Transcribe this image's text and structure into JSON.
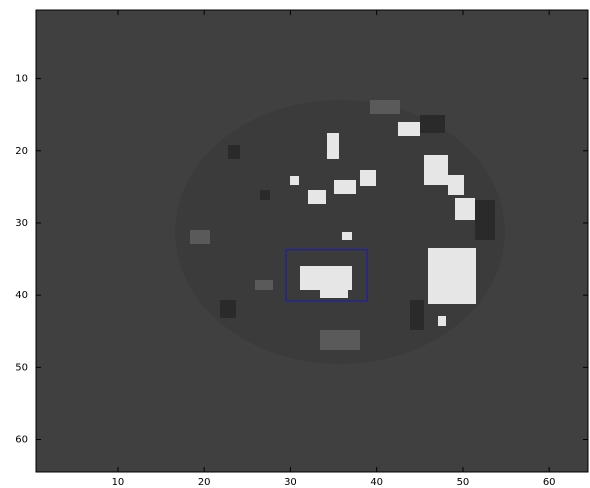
{
  "chart_data": {
    "type": "image",
    "xlim": [
      0.5,
      64.5
    ],
    "ylim": [
      0.5,
      64.5
    ],
    "y_reversed": true,
    "xticks": [
      10,
      20,
      30,
      40,
      50,
      60
    ],
    "yticks": [
      10,
      20,
      30,
      40,
      50,
      60
    ],
    "box": {
      "x": [
        29.5,
        38.9
      ],
      "y": [
        33.7,
        40.8
      ],
      "color": "#1f1fa8"
    }
  }
}
